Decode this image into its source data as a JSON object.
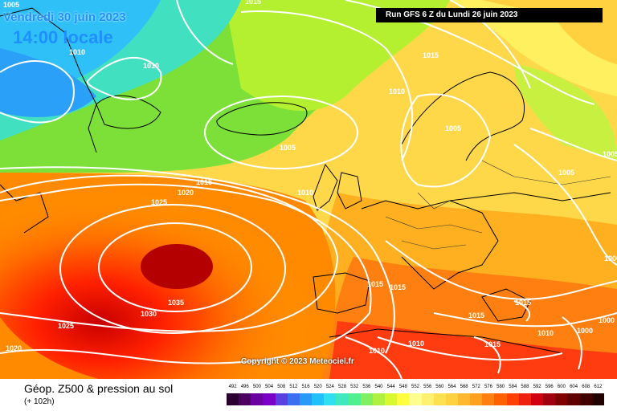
{
  "header": {
    "date": "Vendredi 30 juin 2023",
    "time": "14:00 locale",
    "run": "Run GFS 6 Z du Lundi 26 juin 2023"
  },
  "copyright": "Copyright © 2023 Meteociel.fr",
  "footer": {
    "title": "Géop. Z500 & pression au sol",
    "subtitle": "(+ 102h)"
  },
  "isobar_labels": [
    "1005",
    "1015",
    "1010",
    "1010",
    "1015",
    "1010",
    "1005",
    "1005",
    "1005",
    "1015",
    "1020",
    "1025",
    "1010",
    "1035",
    "1030",
    "1025",
    "1020",
    "1015",
    "1015",
    "1015",
    "1010",
    "1010",
    "1015",
    "1005",
    "1010",
    "1000",
    "1000",
    "1000",
    "1015"
  ],
  "legend": {
    "ticks": [
      "492",
      "496",
      "500",
      "504",
      "508",
      "512",
      "516",
      "520",
      "524",
      "528",
      "532",
      "536",
      "540",
      "544",
      "548",
      "552",
      "556",
      "560",
      "564",
      "568",
      "572",
      "576",
      "580",
      "584",
      "588",
      "592",
      "596",
      "600",
      "604",
      "608",
      "612"
    ],
    "colors": [
      "#2b0030",
      "#4b0060",
      "#6a00a0",
      "#7a00c8",
      "#5a40e0",
      "#3a70f0",
      "#2a9af8",
      "#20c0f8",
      "#30e0f0",
      "#40e8c0",
      "#50f090",
      "#80f060",
      "#b0f040",
      "#d8f830",
      "#ffff40",
      "#ffff90",
      "#fff070",
      "#ffe050",
      "#ffd040",
      "#ffb830",
      "#ffa020",
      "#ff8010",
      "#ff6000",
      "#ff4000",
      "#f02010",
      "#d00010",
      "#a00010",
      "#800000",
      "#600000",
      "#400000",
      "#200000"
    ]
  }
}
